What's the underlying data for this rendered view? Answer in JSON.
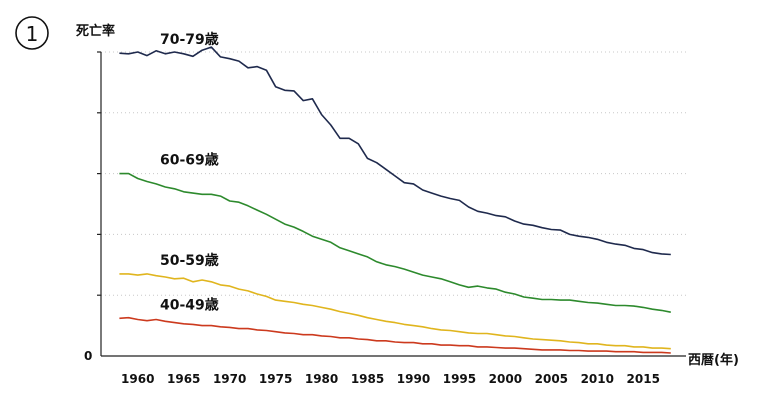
{
  "figure": {
    "number_badge": "①",
    "ylabel": "死亡率",
    "xlabel": "西暦(年)",
    "y_zero_label": "0"
  },
  "chart_data": {
    "type": "line",
    "title": "",
    "xlabel": "西暦(年)",
    "ylabel": "死亡率",
    "xlim": [
      1956,
      2019
    ],
    "ylim": [
      0,
      5
    ],
    "grid": "horizontal dotted",
    "legend": "inline labels at left of each line",
    "x_ticks": [
      1960,
      1965,
      1970,
      1975,
      1980,
      1985,
      1990,
      1995,
      2000,
      2005,
      2010,
      2015
    ],
    "series": [
      {
        "name": "70-79歳",
        "color": "#1f2a4d",
        "x": [
          1958,
          1959,
          1960,
          1961,
          1962,
          1963,
          1964,
          1965,
          1966,
          1967,
          1968,
          1969,
          1970,
          1971,
          1972,
          1973,
          1974,
          1975,
          1976,
          1977,
          1978,
          1979,
          1980,
          1981,
          1982,
          1983,
          1984,
          1985,
          1986,
          1987,
          1988,
          1989,
          1990,
          1991,
          1992,
          1993,
          1994,
          1995,
          1996,
          1997,
          1998,
          1999,
          2000,
          2001,
          2002,
          2003,
          2004,
          2005,
          2006,
          2007,
          2008,
          2009,
          2010,
          2011,
          2012,
          2013,
          2014,
          2015,
          2016,
          2017,
          2018
        ],
        "y": [
          4.98,
          4.97,
          5.0,
          4.94,
          5.02,
          4.97,
          5.0,
          4.97,
          4.93,
          5.03,
          5.08,
          4.92,
          4.89,
          4.85,
          4.74,
          4.76,
          4.7,
          4.43,
          4.37,
          4.36,
          4.2,
          4.23,
          3.97,
          3.8,
          3.58,
          3.58,
          3.49,
          3.25,
          3.18,
          3.07,
          2.96,
          2.85,
          2.83,
          2.73,
          2.68,
          2.63,
          2.59,
          2.56,
          2.45,
          2.38,
          2.35,
          2.31,
          2.29,
          2.22,
          2.17,
          2.15,
          2.11,
          2.08,
          2.07,
          2.0,
          1.97,
          1.95,
          1.92,
          1.87,
          1.84,
          1.82,
          1.77,
          1.75,
          1.7,
          1.68,
          1.67
        ]
      },
      {
        "name": "60-69歳",
        "color": "#2d8a2d",
        "x": [
          1958,
          1959,
          1960,
          1961,
          1962,
          1963,
          1964,
          1965,
          1966,
          1967,
          1968,
          1969,
          1970,
          1971,
          1972,
          1973,
          1974,
          1975,
          1976,
          1977,
          1978,
          1979,
          1980,
          1981,
          1982,
          1983,
          1984,
          1985,
          1986,
          1987,
          1988,
          1989,
          1990,
          1991,
          1992,
          1993,
          1994,
          1995,
          1996,
          1997,
          1998,
          1999,
          2000,
          2001,
          2002,
          2003,
          2004,
          2005,
          2006,
          2007,
          2008,
          2009,
          2010,
          2011,
          2012,
          2013,
          2014,
          2015,
          2016,
          2017,
          2018
        ],
        "y": [
          3.0,
          3.0,
          2.92,
          2.87,
          2.83,
          2.78,
          2.75,
          2.7,
          2.68,
          2.66,
          2.66,
          2.63,
          2.55,
          2.53,
          2.47,
          2.4,
          2.33,
          2.25,
          2.17,
          2.12,
          2.05,
          1.97,
          1.92,
          1.87,
          1.78,
          1.73,
          1.68,
          1.63,
          1.55,
          1.5,
          1.47,
          1.43,
          1.38,
          1.33,
          1.3,
          1.27,
          1.22,
          1.17,
          1.13,
          1.15,
          1.12,
          1.1,
          1.05,
          1.02,
          0.97,
          0.95,
          0.93,
          0.93,
          0.92,
          0.92,
          0.9,
          0.88,
          0.87,
          0.85,
          0.83,
          0.83,
          0.82,
          0.8,
          0.77,
          0.75,
          0.72
        ]
      },
      {
        "name": "50-59歳",
        "color": "#e0b51e",
        "x": [
          1958,
          1959,
          1960,
          1961,
          1962,
          1963,
          1964,
          1965,
          1966,
          1967,
          1968,
          1969,
          1970,
          1971,
          1972,
          1973,
          1974,
          1975,
          1976,
          1977,
          1978,
          1979,
          1980,
          1981,
          1982,
          1983,
          1984,
          1985,
          1986,
          1987,
          1988,
          1989,
          1990,
          1991,
          1992,
          1993,
          1994,
          1995,
          1996,
          1997,
          1998,
          1999,
          2000,
          2001,
          2002,
          2003,
          2004,
          2005,
          2006,
          2007,
          2008,
          2009,
          2010,
          2011,
          2012,
          2013,
          2014,
          2015,
          2016,
          2017,
          2018
        ],
        "y": [
          1.35,
          1.35,
          1.33,
          1.35,
          1.32,
          1.3,
          1.27,
          1.28,
          1.22,
          1.25,
          1.22,
          1.17,
          1.15,
          1.1,
          1.07,
          1.02,
          0.98,
          0.92,
          0.9,
          0.88,
          0.85,
          0.83,
          0.8,
          0.77,
          0.73,
          0.7,
          0.67,
          0.63,
          0.6,
          0.57,
          0.55,
          0.52,
          0.5,
          0.48,
          0.45,
          0.43,
          0.42,
          0.4,
          0.38,
          0.37,
          0.37,
          0.35,
          0.33,
          0.32,
          0.3,
          0.28,
          0.27,
          0.26,
          0.25,
          0.23,
          0.22,
          0.2,
          0.2,
          0.18,
          0.17,
          0.17,
          0.15,
          0.15,
          0.13,
          0.13,
          0.12
        ]
      },
      {
        "name": "40-49歳",
        "color": "#cc3a1e",
        "x": [
          1958,
          1959,
          1960,
          1961,
          1962,
          1963,
          1964,
          1965,
          1966,
          1967,
          1968,
          1969,
          1970,
          1971,
          1972,
          1973,
          1974,
          1975,
          1976,
          1977,
          1978,
          1979,
          1980,
          1981,
          1982,
          1983,
          1984,
          1985,
          1986,
          1987,
          1988,
          1989,
          1990,
          1991,
          1992,
          1993,
          1994,
          1995,
          1996,
          1997,
          1998,
          1999,
          2000,
          2001,
          2002,
          2003,
          2004,
          2005,
          2006,
          2007,
          2008,
          2009,
          2010,
          2011,
          2012,
          2013,
          2014,
          2015,
          2016,
          2017,
          2018
        ],
        "y": [
          0.62,
          0.63,
          0.6,
          0.58,
          0.6,
          0.57,
          0.55,
          0.53,
          0.52,
          0.5,
          0.5,
          0.48,
          0.47,
          0.45,
          0.45,
          0.43,
          0.42,
          0.4,
          0.38,
          0.37,
          0.35,
          0.35,
          0.33,
          0.32,
          0.3,
          0.3,
          0.28,
          0.27,
          0.25,
          0.25,
          0.23,
          0.22,
          0.22,
          0.2,
          0.2,
          0.18,
          0.18,
          0.17,
          0.17,
          0.15,
          0.15,
          0.14,
          0.13,
          0.13,
          0.12,
          0.11,
          0.1,
          0.1,
          0.1,
          0.09,
          0.09,
          0.08,
          0.08,
          0.08,
          0.07,
          0.07,
          0.07,
          0.06,
          0.06,
          0.06,
          0.05
        ]
      }
    ]
  }
}
